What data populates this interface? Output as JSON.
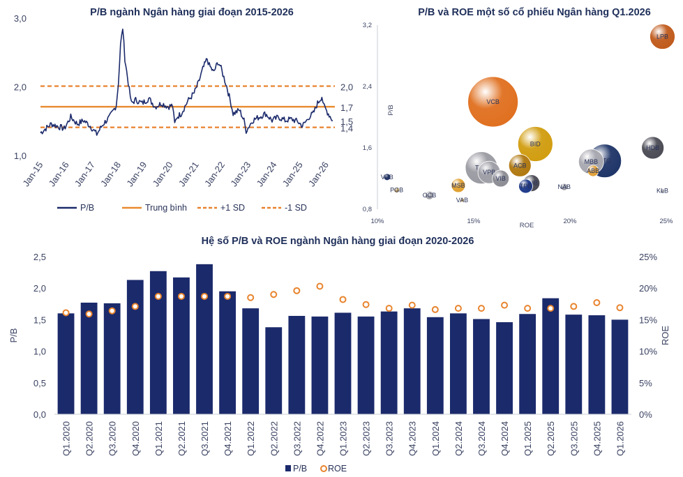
{
  "chart_data": [
    {
      "type": "line",
      "title": "P/B ngành Ngân hàng giai đoạn 2015-2026",
      "y_ticks": [
        "3,0",
        "2,0",
        "1,0"
      ],
      "ylim": [
        1.0,
        3.0
      ],
      "x_ticks": [
        "Jan-15",
        "Jan-16",
        "Jan-17",
        "Jan-18",
        "Jan-19",
        "Jan-20",
        "Jan-21",
        "Jan-22",
        "Jan-23",
        "Jan-24",
        "Jan-25",
        "Jan-26"
      ],
      "xlim": [
        "2015-01",
        "2026-05"
      ],
      "series": [
        {
          "name": "P/B",
          "color": "#1b2a6b",
          "x": [
            "2015-01",
            "2015-06",
            "2015-12",
            "2016-03",
            "2016-06",
            "2016-09",
            "2016-12",
            "2017-03",
            "2017-06",
            "2017-09",
            "2017-12",
            "2018-01",
            "2018-02",
            "2018-03",
            "2018-04",
            "2018-06",
            "2018-07",
            "2018-09",
            "2018-12",
            "2019-03",
            "2019-06",
            "2019-09",
            "2019-12",
            "2020-02",
            "2020-03",
            "2020-04",
            "2020-06",
            "2020-09",
            "2020-12",
            "2021-02",
            "2021-04",
            "2021-06",
            "2021-07",
            "2021-09",
            "2021-11",
            "2021-12",
            "2022-03",
            "2022-05",
            "2022-06",
            "2022-09",
            "2022-11",
            "2022-12",
            "2023-03",
            "2023-06",
            "2023-09",
            "2023-12",
            "2024-03",
            "2024-06",
            "2024-09",
            "2024-12",
            "2025-02",
            "2025-04",
            "2025-05",
            "2025-07",
            "2025-09",
            "2025-11",
            "2025-12",
            "2026-02",
            "2026-04"
          ],
          "values": [
            1.32,
            1.45,
            1.38,
            1.55,
            1.45,
            1.5,
            1.42,
            1.3,
            1.45,
            1.55,
            1.72,
            2.05,
            2.6,
            2.85,
            2.4,
            1.95,
            1.75,
            1.8,
            1.75,
            1.82,
            1.7,
            1.75,
            1.7,
            1.72,
            1.45,
            1.55,
            1.6,
            1.78,
            1.9,
            2.05,
            2.25,
            2.4,
            2.3,
            2.2,
            2.35,
            2.3,
            2.0,
            1.75,
            1.6,
            1.65,
            1.5,
            1.35,
            1.5,
            1.55,
            1.6,
            1.5,
            1.55,
            1.5,
            1.52,
            1.48,
            1.42,
            1.5,
            1.55,
            1.6,
            1.75,
            1.85,
            1.7,
            1.6,
            1.5
          ]
        },
        {
          "name": "Trung bình",
          "value": 1.7,
          "color": "#e88a2e"
        },
        {
          "name": "+1 SD",
          "value": 2.0,
          "color": "#e8822e"
        },
        {
          "name": "-1 SD",
          "value": 1.4,
          "color": "#e8822e"
        }
      ],
      "annotations": [
        "2,0",
        "1,7",
        "1,5",
        "1,4"
      ]
    },
    {
      "type": "scatter",
      "title": "P/B và ROE một số cổ phiếu Ngân hàng Q1.2026",
      "xlabel": "ROE",
      "ylabel": "P/B",
      "xlim": [
        0.1,
        0.25
      ],
      "ylim": [
        0.8,
        3.2
      ],
      "x_ticks": [
        "10%",
        "15%",
        "20%",
        "25%"
      ],
      "y_ticks": [
        "3,2",
        "2,4",
        "1,6",
        "0,8"
      ],
      "points": [
        {
          "label": "LPB",
          "x": 0.248,
          "y": 3.05,
          "size": 18,
          "color": "#c05a1c"
        },
        {
          "label": "VCB",
          "x": 0.16,
          "y": 2.2,
          "size": 36,
          "color": "#e07020"
        },
        {
          "label": "BID",
          "x": 0.182,
          "y": 1.65,
          "size": 25,
          "color": "#d19d10"
        },
        {
          "label": "HDB",
          "x": 0.243,
          "y": 1.6,
          "size": 16,
          "color": "#4b4b55"
        },
        {
          "label": "CTG",
          "x": 0.218,
          "y": 1.43,
          "size": 24,
          "color": "#1f3568"
        },
        {
          "label": "MBB",
          "x": 0.211,
          "y": 1.42,
          "size": 18,
          "color": "#a8a8b0"
        },
        {
          "label": "ABB",
          "x": 0.212,
          "y": 1.3,
          "size": 8,
          "color": "#e2a23a"
        },
        {
          "label": "ACB",
          "x": 0.174,
          "y": 1.37,
          "size": 16,
          "color": "#b0780f"
        },
        {
          "label": "TCB",
          "x": 0.154,
          "y": 1.34,
          "size": 23,
          "color": "#9a9aa2"
        },
        {
          "label": "VPB",
          "x": 0.158,
          "y": 1.28,
          "size": 16,
          "color": "#a0a0a8"
        },
        {
          "label": "VIB",
          "x": 0.164,
          "y": 1.2,
          "size": 12,
          "color": "#8c8c94"
        },
        {
          "label": "SHB",
          "x": 0.18,
          "y": 1.14,
          "size": 12,
          "color": "#4a4a54"
        },
        {
          "label": "TPB",
          "x": 0.177,
          "y": 1.1,
          "size": 10,
          "color": "#1f3a8a"
        },
        {
          "label": "NAB",
          "x": 0.197,
          "y": 1.09,
          "size": 5,
          "color": "#9a9aa2"
        },
        {
          "label": "MSB",
          "x": 0.142,
          "y": 1.11,
          "size": 10,
          "color": "#e0a030"
        },
        {
          "label": "VBB",
          "x": 0.105,
          "y": 1.22,
          "size": 5,
          "color": "#1f3568"
        },
        {
          "label": "PGB",
          "x": 0.11,
          "y": 1.05,
          "size": 4,
          "color": "#c0a060"
        },
        {
          "label": "OCB",
          "x": 0.127,
          "y": 0.98,
          "size": 6,
          "color": "#a0a0a8"
        },
        {
          "label": "VAB",
          "x": 0.144,
          "y": 0.92,
          "size": 3,
          "color": "#c0a060"
        },
        {
          "label": "KLB",
          "x": 0.248,
          "y": 1.04,
          "size": 3,
          "color": "#9a9aa2"
        }
      ]
    },
    {
      "type": "bar",
      "title": "Hệ số P/B và ROE ngành Ngân hàng giai đoạn 2020-2026",
      "ylabel": "P/B",
      "y2label": "ROE",
      "ylim": [
        0,
        2.5
      ],
      "y2lim": [
        0,
        0.25
      ],
      "y_ticks": [
        "0,0",
        "0,5",
        "1,0",
        "1,5",
        "2,0",
        "2,5"
      ],
      "y2_ticks": [
        "0%",
        "5%",
        "10%",
        "15%",
        "20%",
        "25%"
      ],
      "categories": [
        "Q1.2020",
        "Q2.2020",
        "Q3.2020",
        "Q4.2020",
        "Q1.2021",
        "Q2.2021",
        "Q3.2021",
        "Q4.2021",
        "Q1.2022",
        "Q2.2022",
        "Q3.2022",
        "Q4.2022",
        "Q1.2023",
        "Q2.2023",
        "Q3.2023",
        "Q4.2023",
        "Q1.2024",
        "Q2.2024",
        "Q3.2024",
        "Q4.2024",
        "Q1.2025",
        "Q2.2025",
        "Q3.2025",
        "Q4.2025",
        "Q1.2026"
      ],
      "series": [
        {
          "name": "P/B",
          "type": "bar",
          "color": "#1b2a6b",
          "values": [
            1.6,
            1.77,
            1.76,
            2.13,
            2.27,
            2.17,
            2.38,
            1.95,
            1.68,
            1.38,
            1.56,
            1.55,
            1.61,
            1.55,
            1.63,
            1.68,
            1.54,
            1.6,
            1.51,
            1.46,
            1.59,
            1.84,
            1.58,
            1.57,
            1.5
          ]
        },
        {
          "name": "ROE",
          "type": "marker",
          "color": "#e8842e",
          "values": [
            0.161,
            0.159,
            0.164,
            0.171,
            0.187,
            0.187,
            0.187,
            0.187,
            0.185,
            0.19,
            0.196,
            0.203,
            0.182,
            0.174,
            0.168,
            0.173,
            0.166,
            0.168,
            0.168,
            0.173,
            0.168,
            0.168,
            0.171,
            0.177,
            0.169
          ]
        }
      ]
    }
  ]
}
